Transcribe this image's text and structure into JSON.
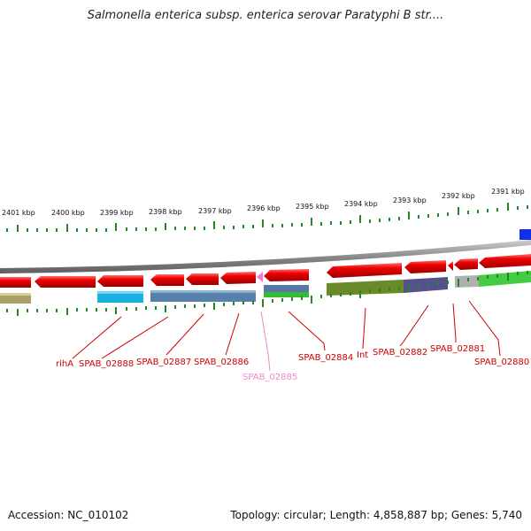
{
  "title": "Salmonella enterica subsp. enterica serovar Paratyphi B str....",
  "footer": {
    "accession": "Accession: NC_010102",
    "summary": "Topology: circular; Length: 4,858,887 bp; Genes: 5,740"
  },
  "ruler": {
    "unit": "kbp",
    "ticks": [
      "2401 kbp",
      "2400 kbp",
      "2399 kbp",
      "2398 kbp",
      "2397 kbp",
      "2396 kbp",
      "2395 kbp",
      "2394 kbp",
      "2393 kbp",
      "2392 kbp",
      "2391 kbp"
    ]
  },
  "gene_labels": [
    "rihA",
    "SPAB_02888",
    "SPAB_02887",
    "SPAB_02886",
    "SPAB_02885",
    "SPAB_02884",
    "Int",
    "SPAB_02882",
    "SPAB_02881",
    "SPAB_02880"
  ],
  "colors": {
    "gene_arrow": "#ee0000",
    "gene_label": "#cc0000",
    "highlight_label": "#ee88cc",
    "highlight_arrow": "#ff77cc",
    "ticks": "#228822",
    "backbone": "#888888"
  }
}
